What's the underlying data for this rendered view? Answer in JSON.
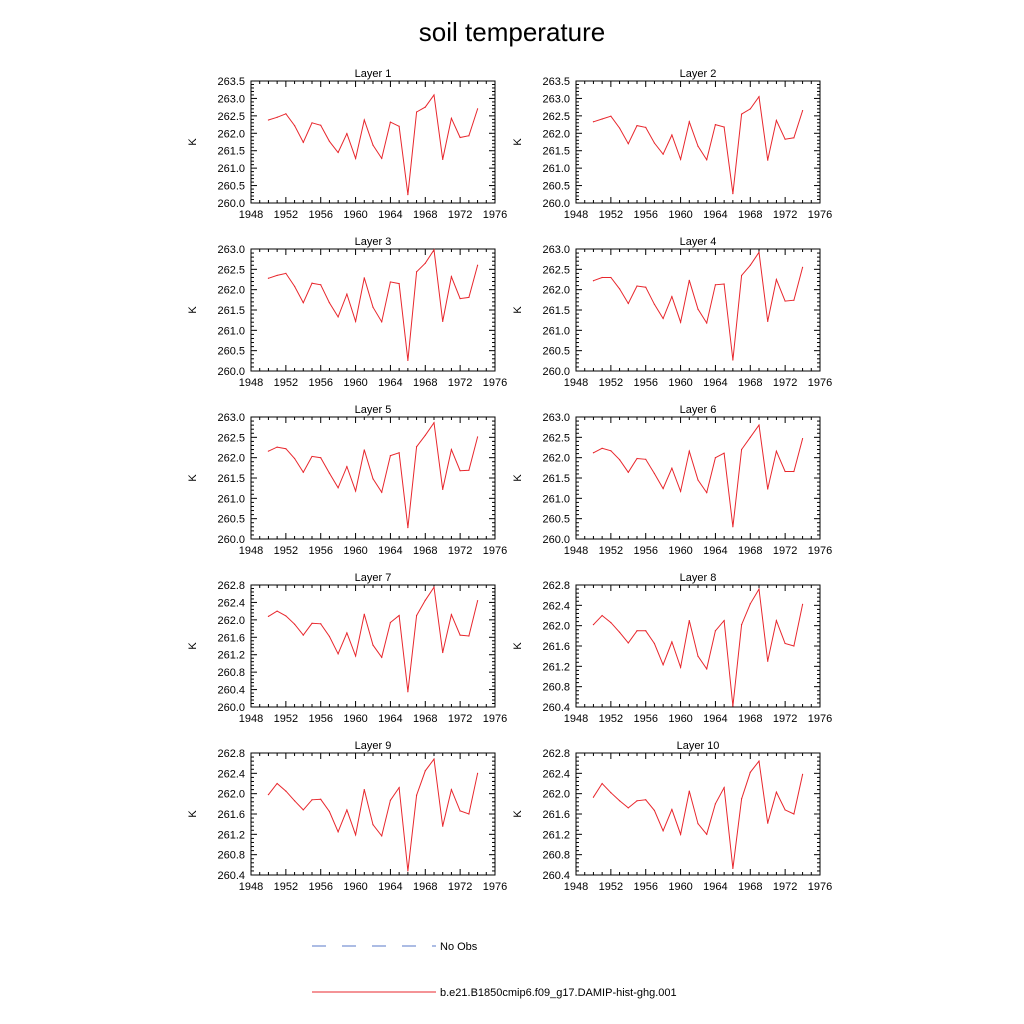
{
  "title": "soil temperature",
  "legend": {
    "placement": "bottom",
    "entries": [
      {
        "label": "No Obs",
        "color": "#5a78c8",
        "style": "dashed"
      },
      {
        "label": "b.e21.B1850cmip6.f09_g17.DAMIP-hist-ghg.001",
        "color": "#e8272d",
        "style": "solid"
      }
    ]
  },
  "chart_data": [
    {
      "type": "line",
      "title": "Layer 1",
      "ylabel": "K",
      "xlim": [
        1948,
        1976
      ],
      "ylim": [
        260.0,
        263.5
      ],
      "xticks": [
        "1948",
        "1952",
        "1956",
        "1960",
        "1964",
        "1968",
        "1972",
        "1976"
      ],
      "yticks": [
        "260.0",
        "260.5",
        "261.0",
        "261.5",
        "262.0",
        "262.5",
        "263.0",
        "263.5"
      ],
      "series": [
        {
          "color": "#e8272d",
          "x": [
            1950,
            1951,
            1952,
            1953,
            1954,
            1955,
            1956,
            1957,
            1958,
            1959,
            1960,
            1961,
            1962,
            1963,
            1964,
            1965,
            1966,
            1967,
            1968,
            1969,
            1970,
            1971,
            1972,
            1973,
            1974
          ],
          "values": [
            262.38,
            262.46,
            262.56,
            262.22,
            261.74,
            262.3,
            262.23,
            261.77,
            261.45,
            261.99,
            261.28,
            262.38,
            261.66,
            261.28,
            262.32,
            262.2,
            260.24,
            262.61,
            262.75,
            263.1,
            261.25,
            262.43,
            261.88,
            261.93,
            262.7
          ]
        }
      ]
    },
    {
      "type": "line",
      "title": "Layer 2",
      "ylabel": "K",
      "xlim": [
        1948,
        1976
      ],
      "ylim": [
        260.0,
        263.5
      ],
      "xticks": [
        "1948",
        "1952",
        "1956",
        "1960",
        "1964",
        "1968",
        "1972",
        "1976"
      ],
      "yticks": [
        "260.0",
        "260.5",
        "261.0",
        "261.5",
        "262.0",
        "262.5",
        "263.0",
        "263.5"
      ],
      "series": [
        {
          "color": "#e8272d",
          "x": [
            1950,
            1951,
            1952,
            1953,
            1954,
            1955,
            1956,
            1957,
            1958,
            1959,
            1960,
            1961,
            1962,
            1963,
            1964,
            1965,
            1966,
            1967,
            1968,
            1969,
            1970,
            1971,
            1972,
            1973,
            1974
          ],
          "values": [
            262.33,
            262.41,
            262.49,
            262.15,
            261.7,
            262.22,
            262.17,
            261.72,
            261.4,
            261.95,
            261.25,
            262.33,
            261.63,
            261.24,
            262.25,
            262.18,
            260.27,
            262.55,
            262.7,
            263.05,
            261.23,
            262.37,
            261.83,
            261.87,
            262.65
          ]
        }
      ]
    },
    {
      "type": "line",
      "title": "Layer 3",
      "ylabel": "K",
      "xlim": [
        1948,
        1976
      ],
      "ylim": [
        260.0,
        263.0
      ],
      "xticks": [
        "1948",
        "1952",
        "1956",
        "1960",
        "1964",
        "1968",
        "1972",
        "1976"
      ],
      "yticks": [
        "260.0",
        "260.5",
        "261.0",
        "261.5",
        "262.0",
        "262.5",
        "263.0"
      ],
      "series": [
        {
          "color": "#e8272d",
          "x": [
            1950,
            1951,
            1952,
            1953,
            1954,
            1955,
            1956,
            1957,
            1958,
            1959,
            1960,
            1961,
            1962,
            1963,
            1964,
            1965,
            1966,
            1967,
            1968,
            1969,
            1970,
            1971,
            1972,
            1973,
            1974
          ],
          "values": [
            262.28,
            262.35,
            262.4,
            262.08,
            261.68,
            262.16,
            262.12,
            261.68,
            261.33,
            261.89,
            261.22,
            262.29,
            261.57,
            261.21,
            262.19,
            262.15,
            260.26,
            262.44,
            262.65,
            262.98,
            261.22,
            262.32,
            261.78,
            261.81,
            262.6
          ]
        }
      ]
    },
    {
      "type": "line",
      "title": "Layer 4",
      "ylabel": "K",
      "xlim": [
        1948,
        1976
      ],
      "ylim": [
        260.0,
        263.0
      ],
      "xticks": [
        "1948",
        "1952",
        "1956",
        "1960",
        "1964",
        "1968",
        "1972",
        "1976"
      ],
      "yticks": [
        "260.0",
        "260.5",
        "261.0",
        "261.5",
        "262.0",
        "262.5",
        "263.0"
      ],
      "series": [
        {
          "color": "#e8272d",
          "x": [
            1950,
            1951,
            1952,
            1953,
            1954,
            1955,
            1956,
            1957,
            1958,
            1959,
            1960,
            1961,
            1962,
            1963,
            1964,
            1965,
            1966,
            1967,
            1968,
            1969,
            1970,
            1971,
            1972,
            1973,
            1974
          ],
          "values": [
            262.22,
            262.3,
            262.3,
            262.02,
            261.66,
            262.09,
            262.06,
            261.64,
            261.29,
            261.83,
            261.2,
            262.23,
            261.52,
            261.18,
            262.12,
            262.14,
            260.27,
            262.35,
            262.6,
            262.92,
            261.22,
            262.25,
            261.72,
            261.74,
            262.55
          ]
        }
      ]
    },
    {
      "type": "line",
      "title": "Layer 5",
      "ylabel": "K",
      "xlim": [
        1948,
        1976
      ],
      "ylim": [
        260.0,
        263.0
      ],
      "xticks": [
        "1948",
        "1952",
        "1956",
        "1960",
        "1964",
        "1968",
        "1972",
        "1976"
      ],
      "yticks": [
        "260.0",
        "260.5",
        "261.0",
        "261.5",
        "262.0",
        "262.5",
        "263.0"
      ],
      "series": [
        {
          "color": "#e8272d",
          "x": [
            1950,
            1951,
            1952,
            1953,
            1954,
            1955,
            1956,
            1957,
            1958,
            1959,
            1960,
            1961,
            1962,
            1963,
            1964,
            1965,
            1966,
            1967,
            1968,
            1969,
            1970,
            1971,
            1972,
            1973,
            1974
          ],
          "values": [
            262.16,
            262.26,
            262.22,
            261.98,
            261.64,
            262.03,
            262.0,
            261.62,
            261.26,
            261.78,
            261.18,
            262.19,
            261.48,
            261.15,
            262.05,
            262.12,
            260.28,
            262.27,
            262.55,
            262.86,
            261.22,
            262.2,
            261.68,
            261.69,
            262.51
          ]
        }
      ]
    },
    {
      "type": "line",
      "title": "Layer 6",
      "ylabel": "K",
      "xlim": [
        1948,
        1976
      ],
      "ylim": [
        260.0,
        263.0
      ],
      "xticks": [
        "1948",
        "1952",
        "1956",
        "1960",
        "1964",
        "1968",
        "1972",
        "1976"
      ],
      "yticks": [
        "260.0",
        "260.5",
        "261.0",
        "261.5",
        "262.0",
        "262.5",
        "263.0"
      ],
      "series": [
        {
          "color": "#e8272d",
          "x": [
            1950,
            1951,
            1952,
            1953,
            1954,
            1955,
            1956,
            1957,
            1958,
            1959,
            1960,
            1961,
            1962,
            1963,
            1964,
            1965,
            1966,
            1967,
            1968,
            1969,
            1970,
            1971,
            1972,
            1973,
            1974
          ],
          "values": [
            262.12,
            262.23,
            262.17,
            261.95,
            261.64,
            261.98,
            261.96,
            261.61,
            261.24,
            261.74,
            261.17,
            262.16,
            261.45,
            261.14,
            262.0,
            262.11,
            260.3,
            262.2,
            262.5,
            262.8,
            261.23,
            262.16,
            261.66,
            261.66,
            262.47
          ]
        }
      ]
    },
    {
      "type": "line",
      "title": "Layer 7",
      "ylabel": "K",
      "xlim": [
        1948,
        1976
      ],
      "ylim": [
        260.0,
        262.8
      ],
      "xticks": [
        "1948",
        "1952",
        "1956",
        "1960",
        "1964",
        "1968",
        "1972",
        "1976"
      ],
      "yticks": [
        "260.0",
        "260.4",
        "260.8",
        "261.2",
        "261.6",
        "262.0",
        "262.4",
        "262.8"
      ],
      "series": [
        {
          "color": "#e8272d",
          "x": [
            1950,
            1951,
            1952,
            1953,
            1954,
            1955,
            1956,
            1957,
            1958,
            1959,
            1960,
            1961,
            1962,
            1963,
            1964,
            1965,
            1966,
            1967,
            1968,
            1969,
            1970,
            1971,
            1972,
            1973,
            1974
          ],
          "values": [
            262.08,
            262.2,
            262.09,
            261.9,
            261.65,
            261.92,
            261.91,
            261.62,
            261.22,
            261.7,
            261.17,
            262.13,
            261.42,
            261.14,
            261.94,
            262.1,
            260.35,
            262.1,
            262.45,
            262.75,
            261.25,
            262.12,
            261.65,
            261.63,
            262.44
          ]
        }
      ]
    },
    {
      "type": "line",
      "title": "Layer 8",
      "ylabel": "K",
      "xlim": [
        1948,
        1976
      ],
      "ylim": [
        260.4,
        262.8
      ],
      "xticks": [
        "1948",
        "1952",
        "1956",
        "1960",
        "1964",
        "1968",
        "1972",
        "1976"
      ],
      "yticks": [
        "260.4",
        "260.8",
        "261.2",
        "261.6",
        "262.0",
        "262.4",
        "262.8"
      ],
      "series": [
        {
          "color": "#e8272d",
          "x": [
            1950,
            1951,
            1952,
            1953,
            1954,
            1955,
            1956,
            1957,
            1958,
            1959,
            1960,
            1961,
            1962,
            1963,
            1964,
            1965,
            1966,
            1967,
            1968,
            1969,
            1970,
            1971,
            1972,
            1973,
            1974
          ],
          "values": [
            262.02,
            262.2,
            262.06,
            261.87,
            261.66,
            261.9,
            261.9,
            261.65,
            261.23,
            261.68,
            261.18,
            262.1,
            261.4,
            261.15,
            261.9,
            262.1,
            260.42,
            262.02,
            262.43,
            262.72,
            261.3,
            262.1,
            261.65,
            261.6,
            262.42
          ]
        }
      ]
    },
    {
      "type": "line",
      "title": "Layer 9",
      "ylabel": "K",
      "xlim": [
        1948,
        1976
      ],
      "ylim": [
        260.4,
        262.8
      ],
      "xticks": [
        "1948",
        "1952",
        "1956",
        "1960",
        "1964",
        "1968",
        "1972",
        "1976"
      ],
      "yticks": [
        "260.4",
        "260.8",
        "261.2",
        "261.6",
        "262.0",
        "262.4",
        "262.8"
      ],
      "series": [
        {
          "color": "#e8272d",
          "x": [
            1950,
            1951,
            1952,
            1953,
            1954,
            1955,
            1956,
            1957,
            1958,
            1959,
            1960,
            1961,
            1962,
            1963,
            1964,
            1965,
            1966,
            1967,
            1968,
            1969,
            1970,
            1971,
            1972,
            1973,
            1974
          ],
          "values": [
            261.98,
            262.2,
            262.05,
            261.86,
            261.68,
            261.88,
            261.89,
            261.65,
            261.25,
            261.68,
            261.19,
            262.08,
            261.39,
            261.17,
            261.87,
            262.12,
            260.48,
            261.97,
            262.45,
            262.68,
            261.36,
            262.08,
            261.66,
            261.6,
            262.4
          ]
        }
      ]
    },
    {
      "type": "line",
      "title": "Layer 10",
      "ylabel": "K",
      "xlim": [
        1948,
        1976
      ],
      "ylim": [
        260.4,
        262.8
      ],
      "xticks": [
        "1948",
        "1952",
        "1956",
        "1960",
        "1964",
        "1968",
        "1972",
        "1976"
      ],
      "yticks": [
        "260.4",
        "260.8",
        "261.2",
        "261.6",
        "262.0",
        "262.4",
        "262.8"
      ],
      "series": [
        {
          "color": "#e8272d",
          "x": [
            1950,
            1951,
            1952,
            1953,
            1954,
            1955,
            1956,
            1957,
            1958,
            1959,
            1960,
            1961,
            1962,
            1963,
            1964,
            1965,
            1966,
            1967,
            1968,
            1969,
            1970,
            1971,
            1972,
            1973,
            1974
          ],
          "values": [
            261.93,
            262.2,
            262.02,
            261.86,
            261.72,
            261.86,
            261.88,
            261.67,
            261.27,
            261.69,
            261.2,
            262.05,
            261.41,
            261.2,
            261.8,
            262.12,
            260.53,
            261.9,
            262.42,
            262.64,
            261.42,
            262.03,
            261.68,
            261.6,
            262.38
          ]
        }
      ]
    }
  ]
}
